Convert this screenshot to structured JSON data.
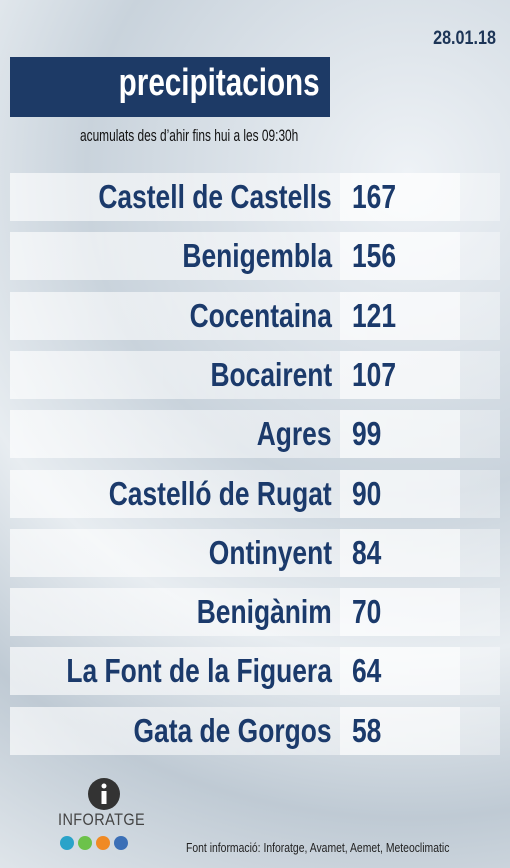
{
  "header": {
    "date": "28.01.18",
    "title": "precipitacions",
    "subtitle": "acumulats des d’ahir fins hui a les 09:30h"
  },
  "table": {
    "rows": [
      [
        "Castell de Castells",
        167
      ],
      [
        "Benigembla",
        156
      ],
      [
        "Cocentaina",
        121
      ],
      [
        "Bocairent",
        107
      ],
      [
        "Agres",
        99
      ],
      [
        "Castelló de Rugat",
        90
      ],
      [
        "Ontinyent",
        84
      ],
      [
        "Benigànim",
        70
      ],
      [
        "La Font de la Figuera",
        64
      ],
      [
        "Gata de Gorgos",
        58
      ]
    ]
  },
  "footer": {
    "logo": "INFORATGE",
    "source": "Font informació: Inforatge, Avamet, Aemet, Meteoclimatic"
  }
}
